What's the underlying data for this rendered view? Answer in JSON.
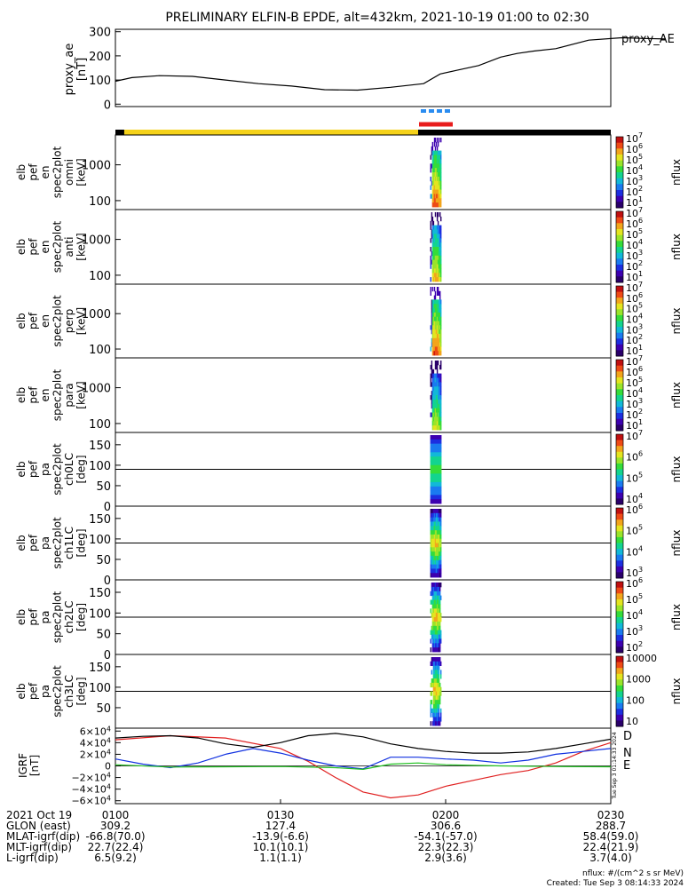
{
  "title": "PRELIMINARY ELFIN-B EPDE, alt=432km, 2021-10-19 01:00 to 02:30",
  "colors": {
    "ae_line": "#000000",
    "science_zone_bar": "#f5d21a",
    "orbit_bar": "#000000",
    "epd_marker_blue": "#2a8cf0",
    "epd_marker_red": "#e81c1c",
    "mag_D": "#e02020",
    "mag_N": "#1030e0",
    "mag_E": "#20c020",
    "mag_total": "#000000"
  },
  "chart_data": [
    {
      "type": "line",
      "panel": "proxy_ae",
      "ylabel": "proxy_ae [nT]",
      "legend": "proxy_AE",
      "yticks": [
        "300",
        "200",
        "100",
        "0"
      ],
      "ylim": [
        -10,
        310
      ],
      "x_minutes": [
        0,
        3,
        8,
        14,
        20,
        26,
        32,
        38,
        44,
        50,
        56,
        59,
        62,
        66,
        70,
        73,
        76,
        80,
        86,
        92,
        96,
        100
      ],
      "y": [
        95,
        110,
        118,
        115,
        100,
        85,
        75,
        60,
        58,
        70,
        85,
        125,
        140,
        160,
        195,
        210,
        220,
        230,
        265,
        275,
        272,
        270
      ]
    },
    {
      "type": "heatmap",
      "panel": "spec_omni",
      "ylabel": "elb pef en spec2plot omni [keV]",
      "yticks": [
        "1000",
        "100"
      ],
      "colorbar_ticks": [
        "10^7",
        "10^6",
        "10^5",
        "10^4",
        "10^3",
        "10^2",
        "10^1"
      ],
      "zlabel": "nflux"
    },
    {
      "type": "heatmap",
      "panel": "spec_anti",
      "ylabel": "elb pef en spec2plot anti [keV]",
      "yticks": [
        "1000",
        "100"
      ],
      "colorbar_ticks": [
        "10^7",
        "10^6",
        "10^5",
        "10^4",
        "10^3",
        "10^2",
        "10^1"
      ],
      "zlabel": "nflux"
    },
    {
      "type": "heatmap",
      "panel": "spec_perp",
      "ylabel": "elb pef en spec2plot perp [keV]",
      "yticks": [
        "1000",
        "100"
      ],
      "colorbar_ticks": [
        "10^7",
        "10^6",
        "10^5",
        "10^4",
        "10^3",
        "10^2",
        "10^1"
      ],
      "zlabel": "nflux"
    },
    {
      "type": "heatmap",
      "panel": "spec_para",
      "ylabel": "elb pef en spec2plot para [keV]",
      "yticks": [
        "1000",
        "100"
      ],
      "colorbar_ticks": [
        "10^7",
        "10^6",
        "10^5",
        "10^4",
        "10^3",
        "10^2",
        "10^1"
      ],
      "zlabel": "nflux"
    },
    {
      "type": "heatmap",
      "panel": "pa_ch0",
      "ylabel": "elb pef pa spec2plot ch0LC [deg]",
      "yticks": [
        "150",
        "100",
        "50",
        "0"
      ],
      "colorbar_ticks": [
        "10^7",
        "10^6",
        "10^5",
        "10^4"
      ],
      "zlabel": "nflux"
    },
    {
      "type": "heatmap",
      "panel": "pa_ch1",
      "ylabel": "elb pef pa spec2plot ch1LC [deg]",
      "yticks": [
        "150",
        "100",
        "50",
        "0"
      ],
      "colorbar_ticks": [
        "10^6",
        "10^5",
        "10^4",
        "10^3"
      ],
      "zlabel": "nflux"
    },
    {
      "type": "heatmap",
      "panel": "pa_ch2",
      "ylabel": "elb pef pa spec2plot ch2LC [deg]",
      "yticks": [
        "150",
        "100",
        "50",
        "0"
      ],
      "colorbar_ticks": [
        "10^6",
        "10^5",
        "10^4",
        "10^3",
        "10^2"
      ],
      "zlabel": "nflux"
    },
    {
      "type": "heatmap",
      "panel": "pa_ch3",
      "ylabel": "elb pef pa spec2plot ch3LC [deg]",
      "yticks": [
        "150",
        "100",
        "50"
      ],
      "colorbar_ticks": [
        "10000",
        "1000",
        "100",
        "10"
      ],
      "zlabel": "nflux"
    },
    {
      "type": "line",
      "panel": "igrf",
      "ylabel": "IGRF [nT]",
      "yticks": [
        "6×10^4",
        "4×10^4",
        "2×10^4",
        "0",
        "−2×10^4",
        "−4×10^4",
        "−6×10^4"
      ],
      "ylim": [
        -65000,
        65000
      ],
      "series": [
        {
          "name": "D",
          "x_minutes": [
            0,
            10,
            20,
            30,
            35,
            40,
            45,
            50,
            55,
            60,
            65,
            70,
            75,
            80,
            85,
            90
          ],
          "values": [
            45000,
            52000,
            48000,
            30000,
            8000,
            -20000,
            -45000,
            -55000,
            -50000,
            -35000,
            -25000,
            -15000,
            -8000,
            5000,
            25000,
            40000
          ]
        },
        {
          "name": "N",
          "x_minutes": [
            0,
            5,
            10,
            15,
            20,
            25,
            30,
            35,
            40,
            45,
            50,
            55,
            60,
            65,
            70,
            75,
            80,
            85,
            90
          ],
          "values": [
            12000,
            3000,
            -3000,
            5000,
            20000,
            30000,
            22000,
            10000,
            0,
            -5000,
            15000,
            15000,
            12000,
            10000,
            5000,
            10000,
            20000,
            25000,
            30000
          ]
        },
        {
          "name": "E",
          "x_minutes": [
            0,
            10,
            20,
            30,
            40,
            45,
            50,
            55,
            60,
            70,
            80,
            90
          ],
          "values": [
            2000,
            -2000,
            -1500,
            -1000,
            -3000,
            -6000,
            3000,
            5000,
            2000,
            0,
            -1000,
            -1500
          ]
        },
        {
          "name": "",
          "x_minutes": [
            0,
            5,
            10,
            15,
            20,
            25,
            30,
            35,
            40,
            45,
            50,
            55,
            60,
            65,
            70,
            75,
            80,
            85,
            90
          ],
          "values": [
            48000,
            51000,
            52000,
            48000,
            38000,
            32000,
            40000,
            52000,
            56000,
            50000,
            38000,
            30000,
            25000,
            22000,
            22000,
            24000,
            30000,
            38000,
            46000
          ]
        }
      ]
    }
  ],
  "panels": {
    "proxy_ae": {
      "label_lines": [
        "proxy_ae",
        "[nT]"
      ],
      "legend": "proxy_AE"
    },
    "spec_omni": {
      "label_lines": [
        "elb",
        "pef",
        "en",
        "spec2plot",
        "omni",
        "[keV]"
      ]
    },
    "spec_anti": {
      "label_lines": [
        "elb",
        "pef",
        "en",
        "spec2plot",
        "anti",
        "[keV]"
      ]
    },
    "spec_perp": {
      "label_lines": [
        "elb",
        "pef",
        "en",
        "spec2plot",
        "perp",
        "[keV]"
      ]
    },
    "spec_para": {
      "label_lines": [
        "elb",
        "pef",
        "en",
        "spec2plot",
        "para",
        "[keV]"
      ]
    },
    "pa_ch0": {
      "label_lines": [
        "elb",
        "pef",
        "pa",
        "spec2plot",
        "ch0LC",
        "[deg]"
      ]
    },
    "pa_ch1": {
      "label_lines": [
        "elb",
        "pef",
        "pa",
        "spec2plot",
        "ch1LC",
        "[deg]"
      ]
    },
    "pa_ch2": {
      "label_lines": [
        "elb",
        "pef",
        "pa",
        "spec2plot",
        "ch2LC",
        "[deg]"
      ]
    },
    "pa_ch3": {
      "label_lines": [
        "elb",
        "pef",
        "pa",
        "spec2plot",
        "ch3LC",
        "[deg]"
      ]
    },
    "igrf": {
      "label_lines": [
        "IGRF",
        "[nT]"
      ],
      "legend": [
        "D",
        "N",
        "E"
      ]
    },
    "zlabel": "nflux",
    "vertical_stamp": "Tue Sep 3 01:14:33 2024"
  },
  "footer": {
    "rows": [
      {
        "label": "2021 Oct 19",
        "values": [
          "0100",
          "0130",
          "0200",
          "0230"
        ]
      },
      {
        "label": "GLON (east)",
        "values": [
          "309.2",
          "127.4",
          "306.6",
          "288.7"
        ]
      },
      {
        "label": "MLAT-igrf(dip)",
        "values": [
          "-66.8(70.0)",
          "-13.9(-6.6)",
          "-54.1(-57.0)",
          "58.4(59.0)"
        ]
      },
      {
        "label": "MLT-igrf(dip)",
        "values": [
          "22.7(22.4)",
          "10.1(10.1)",
          "22.3(22.3)",
          "22.4(21.9)"
        ]
      },
      {
        "label": "L-igrf(dip)",
        "values": [
          "6.5(9.2)",
          "1.1(1.1)",
          "2.9(3.6)",
          "3.7(4.0)"
        ]
      }
    ],
    "units_note": "nflux: #/(cm^2 s sr MeV)",
    "created": "Created: Tue Sep  3 08:14:33 2024"
  }
}
